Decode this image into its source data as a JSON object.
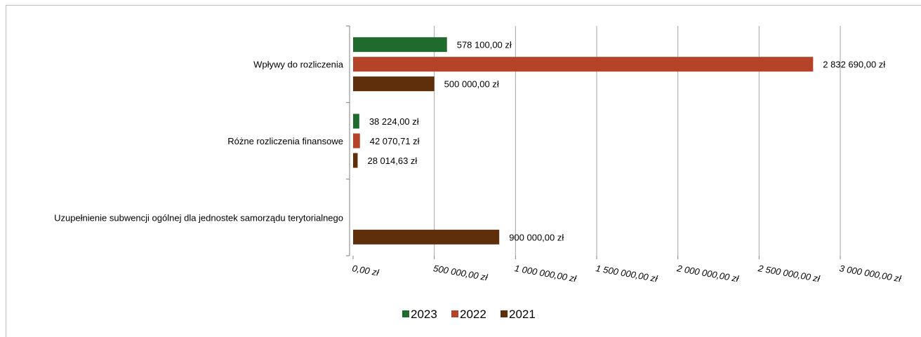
{
  "chart_data": {
    "type": "bar",
    "orientation": "horizontal",
    "categories": [
      "Wpływy do rozliczenia",
      "Różne rozliczenia finansowe",
      "Uzupełnienie subwencji ogólnej dla jednostek samorządu terytorialnego"
    ],
    "series": [
      {
        "name": "2023",
        "color": "#1f6b2d",
        "values": [
          578100,
          38224,
          null
        ],
        "labels": [
          "578 100,00 zł",
          "38 224,00 zł",
          ""
        ]
      },
      {
        "name": "2022",
        "color": "#b44327",
        "values": [
          2832690,
          42070.71,
          null
        ],
        "labels": [
          "2 832 690,00 zł",
          "42 070,71 zł",
          ""
        ]
      },
      {
        "name": "2021",
        "color": "#5f2f0b",
        "values": [
          500000,
          28014.63,
          900000
        ],
        "labels": [
          "500 000,00 zł",
          "28 014,63 zł",
          "900 000,00 zł"
        ]
      }
    ],
    "xlim": [
      0,
      3000000
    ],
    "x_ticks": [
      0,
      500000,
      1000000,
      1500000,
      2000000,
      2500000,
      3000000
    ],
    "x_tick_labels": [
      "0,00 zł",
      "500 000,00 zł",
      "1 000 000,00 zł",
      "1 500 000,00 zł",
      "2 000 000,00 zł",
      "2 500 000,00 zł",
      "3 000 000,00 zł"
    ],
    "grid": true,
    "legend_position": "bottom",
    "title": "",
    "xlabel": "",
    "ylabel": ""
  },
  "colors": {
    "grid": "#a6a6a6",
    "axis": "#7f7f7f",
    "frame": "#bfbfbf"
  }
}
